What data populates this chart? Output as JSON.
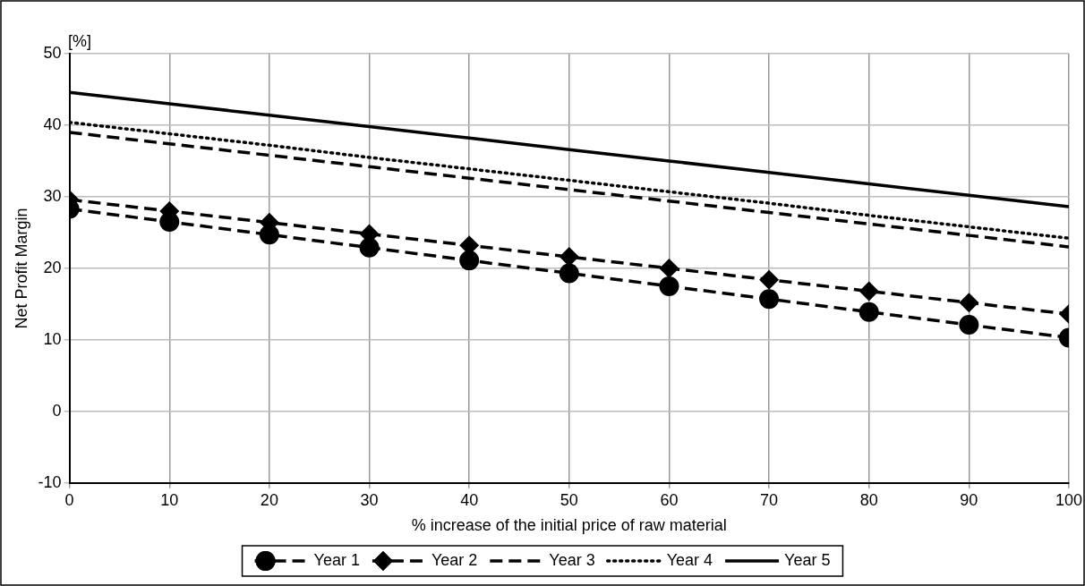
{
  "chart_data": {
    "type": "line",
    "xlabel": "% increase of the initial price of raw material",
    "ylabel": "Net Profit Margin",
    "annotations": [
      "[%]"
    ],
    "x": [
      0,
      10,
      20,
      30,
      40,
      50,
      60,
      70,
      80,
      90,
      100
    ],
    "xlim": [
      0,
      100
    ],
    "xticks": [
      0,
      10,
      20,
      30,
      40,
      50,
      60,
      70,
      80,
      90,
      100
    ],
    "ylim": [
      -10,
      50
    ],
    "yticks": [
      -10,
      0,
      10,
      20,
      30,
      40,
      50
    ],
    "grid": true,
    "legend": "bottom",
    "series": [
      {
        "name": "Year 1",
        "color": "#000000",
        "marker": "circle",
        "line_style": "dashed",
        "values": [
          28.3,
          26.5,
          24.7,
          22.9,
          21.1,
          19.3,
          17.5,
          15.7,
          13.9,
          12.1,
          10.3
        ]
      },
      {
        "name": "Year 2",
        "color": "#000000",
        "marker": "diamond",
        "line_style": "dashed",
        "values": [
          29.6,
          28.0,
          26.4,
          24.8,
          23.2,
          21.6,
          20.0,
          18.4,
          16.8,
          15.2,
          13.6
        ]
      },
      {
        "name": "Year 3",
        "color": "#000000",
        "marker": "none",
        "line_style": "dashed",
        "values": [
          39.0,
          37.4,
          35.8,
          34.2,
          32.6,
          31.0,
          29.4,
          27.8,
          26.2,
          24.6,
          23.0
        ]
      },
      {
        "name": "Year 4",
        "color": "#000000",
        "marker": "none",
        "line_style": "dotted",
        "values": [
          40.4,
          38.8,
          37.2,
          35.5,
          33.9,
          32.3,
          30.7,
          29.1,
          27.4,
          25.8,
          24.2
        ]
      },
      {
        "name": "Year 5",
        "color": "#000000",
        "marker": "none",
        "line_style": "solid",
        "values": [
          44.6,
          43.0,
          41.4,
          39.8,
          38.2,
          36.6,
          35.0,
          33.4,
          31.8,
          30.2,
          28.6
        ]
      }
    ]
  }
}
